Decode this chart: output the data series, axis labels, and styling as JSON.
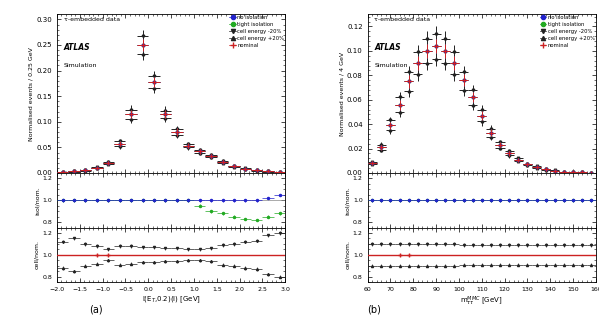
{
  "panel_a": {
    "title": "τ-embedded data",
    "atlas_label": "ATLAS",
    "sim_label": "Simulation",
    "xlabel": "l(E$_{T}$,0.2)(l) [GeV]",
    "ylabel_main": "Normalised events / 0.25 GeV",
    "ylabel_ratio1": "isol/nom.",
    "ylabel_ratio2": "cell/nom.",
    "xlim": [
      -2.0,
      3.0
    ],
    "ylim_main": [
      0.0,
      0.31
    ],
    "ylim_ratio": [
      0.75,
      1.25
    ],
    "yticks_main": [
      0.0,
      0.05,
      0.1,
      0.15,
      0.2,
      0.25,
      0.3
    ],
    "yticks_ratio": [
      0.8,
      1.0,
      1.2
    ],
    "xticks": [
      -2.0,
      -1.5,
      -1.0,
      -0.5,
      0.0,
      0.5,
      1.0,
      1.5,
      2.0,
      2.5,
      3.0
    ],
    "x_bins": [
      -1.875,
      -1.625,
      -1.375,
      -1.125,
      -0.875,
      -0.625,
      -0.375,
      -0.125,
      0.125,
      0.375,
      0.625,
      0.875,
      1.125,
      1.375,
      1.625,
      1.875,
      2.125,
      2.375,
      2.625,
      2.875
    ],
    "nominal": [
      0.002,
      0.003,
      0.005,
      0.01,
      0.02,
      0.057,
      0.115,
      0.25,
      0.178,
      0.115,
      0.08,
      0.053,
      0.042,
      0.033,
      0.022,
      0.013,
      0.008,
      0.005,
      0.003,
      0.002
    ],
    "no_isol": [
      0.002,
      0.003,
      0.005,
      0.01,
      0.02,
      0.057,
      0.115,
      0.25,
      0.178,
      0.115,
      0.08,
      0.053,
      0.042,
      0.033,
      0.022,
      0.013,
      0.008,
      0.005,
      0.003,
      0.002
    ],
    "tight_isol": [
      0.002,
      0.003,
      0.005,
      0.01,
      0.02,
      0.057,
      0.115,
      0.25,
      0.178,
      0.115,
      0.08,
      0.053,
      0.042,
      0.033,
      0.022,
      0.013,
      0.008,
      0.005,
      0.003,
      0.002
    ],
    "cell_minus": [
      0.0024,
      0.0034,
      0.0056,
      0.011,
      0.022,
      0.062,
      0.124,
      0.268,
      0.19,
      0.122,
      0.085,
      0.056,
      0.044,
      0.035,
      0.024,
      0.014,
      0.009,
      0.006,
      0.004,
      0.0025
    ],
    "cell_plus": [
      0.0018,
      0.0026,
      0.0044,
      0.009,
      0.018,
      0.052,
      0.106,
      0.232,
      0.166,
      0.108,
      0.075,
      0.05,
      0.04,
      0.031,
      0.02,
      0.012,
      0.007,
      0.004,
      0.0026,
      0.0015
    ],
    "nominal_err": [
      0.001,
      0.001,
      0.001,
      0.002,
      0.003,
      0.005,
      0.008,
      0.012,
      0.01,
      0.008,
      0.007,
      0.005,
      0.005,
      0.004,
      0.003,
      0.002,
      0.002,
      0.001,
      0.001,
      0.001
    ],
    "no_isol_err": [
      0.001,
      0.001,
      0.001,
      0.002,
      0.003,
      0.005,
      0.008,
      0.012,
      0.01,
      0.008,
      0.007,
      0.005,
      0.005,
      0.004,
      0.003,
      0.002,
      0.002,
      0.001,
      0.001,
      0.001
    ],
    "tight_isol_err": [
      0.001,
      0.001,
      0.001,
      0.002,
      0.003,
      0.005,
      0.008,
      0.012,
      0.01,
      0.008,
      0.007,
      0.005,
      0.005,
      0.004,
      0.003,
      0.002,
      0.002,
      0.001,
      0.001,
      0.001
    ],
    "cell_err": [
      0.001,
      0.001,
      0.001,
      0.002,
      0.003,
      0.005,
      0.008,
      0.012,
      0.01,
      0.008,
      0.007,
      0.005,
      0.005,
      0.004,
      0.003,
      0.002,
      0.002,
      0.001,
      0.001,
      0.001
    ],
    "ratio1_no_isol": [
      1.0,
      1.0,
      1.0,
      1.0,
      1.0,
      1.0,
      1.0,
      1.0,
      1.0,
      1.0,
      1.0,
      1.0,
      1.0,
      1.0,
      1.0,
      1.0,
      1.0,
      1.0,
      1.02,
      1.05
    ],
    "ratio1_tight_isol": [
      1.0,
      1.0,
      1.0,
      1.0,
      1.0,
      1.0,
      1.0,
      1.0,
      1.0,
      1.0,
      1.0,
      1.0,
      0.95,
      0.9,
      0.88,
      0.85,
      0.83,
      0.82,
      0.85,
      0.88
    ],
    "ratio2_minus": [
      1.12,
      1.15,
      1.1,
      1.08,
      1.05,
      1.08,
      1.08,
      1.07,
      1.07,
      1.06,
      1.06,
      1.05,
      1.05,
      1.06,
      1.09,
      1.1,
      1.12,
      1.13,
      1.18,
      1.2
    ],
    "ratio2_plus": [
      0.88,
      0.85,
      0.9,
      0.92,
      0.95,
      0.91,
      0.92,
      0.93,
      0.93,
      0.94,
      0.94,
      0.95,
      0.95,
      0.94,
      0.91,
      0.9,
      0.88,
      0.87,
      0.82,
      0.8
    ],
    "xerr": 0.125
  },
  "panel_b": {
    "title": "τ-embedded data",
    "atlas_label": "ATLAS",
    "sim_label": "Simulation",
    "xlabel": "m$^{MMC}_{\\tau\\tau}$ [GeV]",
    "ylabel_main": "Normalised events / 4 GeV",
    "ylabel_ratio1": "isol/nom.",
    "ylabel_ratio2": "cell/nom.",
    "xlim": [
      60,
      160
    ],
    "ylim_main": [
      0.0,
      0.13
    ],
    "ylim_ratio": [
      0.75,
      1.25
    ],
    "yticks_main": [
      0.0,
      0.02,
      0.04,
      0.06,
      0.08,
      0.1,
      0.12
    ],
    "yticks_ratio": [
      0.8,
      1.0,
      1.2
    ],
    "xticks": [
      60,
      70,
      80,
      90,
      100,
      110,
      120,
      130,
      140,
      150,
      160
    ],
    "x_bins": [
      62,
      66,
      70,
      74,
      78,
      82,
      86,
      90,
      94,
      98,
      102,
      106,
      110,
      114,
      118,
      122,
      126,
      130,
      134,
      138,
      142,
      146,
      150,
      154,
      158
    ],
    "nominal": [
      0.008,
      0.021,
      0.039,
      0.056,
      0.075,
      0.09,
      0.1,
      0.104,
      0.1,
      0.09,
      0.076,
      0.062,
      0.047,
      0.033,
      0.023,
      0.016,
      0.011,
      0.007,
      0.005,
      0.003,
      0.002,
      0.001,
      0.001,
      0.0005,
      0.0003
    ],
    "no_isol": [
      0.008,
      0.021,
      0.039,
      0.056,
      0.075,
      0.09,
      0.1,
      0.104,
      0.1,
      0.09,
      0.076,
      0.062,
      0.047,
      0.033,
      0.023,
      0.016,
      0.011,
      0.007,
      0.005,
      0.003,
      0.002,
      0.001,
      0.001,
      0.0005,
      0.0003
    ],
    "tight_isol": [
      0.008,
      0.021,
      0.039,
      0.056,
      0.075,
      0.09,
      0.1,
      0.104,
      0.1,
      0.09,
      0.076,
      0.062,
      0.047,
      0.033,
      0.023,
      0.016,
      0.011,
      0.007,
      0.005,
      0.003,
      0.002,
      0.001,
      0.001,
      0.0005,
      0.0003
    ],
    "cell_minus": [
      0.0088,
      0.023,
      0.043,
      0.062,
      0.083,
      0.099,
      0.11,
      0.114,
      0.11,
      0.099,
      0.083,
      0.068,
      0.052,
      0.036,
      0.025,
      0.018,
      0.012,
      0.0077,
      0.0055,
      0.0033,
      0.0022,
      0.0011,
      0.0011,
      0.00055,
      0.00033
    ],
    "cell_plus": [
      0.0072,
      0.019,
      0.035,
      0.05,
      0.067,
      0.081,
      0.09,
      0.0936,
      0.09,
      0.081,
      0.068,
      0.0558,
      0.0423,
      0.0297,
      0.0207,
      0.0144,
      0.0099,
      0.0063,
      0.0045,
      0.0027,
      0.0018,
      0.0009,
      0.0009,
      0.00045,
      0.00027
    ],
    "nominal_err": [
      0.001,
      0.002,
      0.003,
      0.004,
      0.005,
      0.006,
      0.006,
      0.006,
      0.006,
      0.006,
      0.005,
      0.004,
      0.004,
      0.003,
      0.002,
      0.002,
      0.001,
      0.001,
      0.001,
      0.001,
      0.0005,
      0.0003,
      0.0003,
      0.0002,
      0.0002
    ],
    "no_isol_err": [
      0.001,
      0.002,
      0.003,
      0.004,
      0.005,
      0.006,
      0.006,
      0.006,
      0.006,
      0.006,
      0.005,
      0.004,
      0.004,
      0.003,
      0.002,
      0.002,
      0.001,
      0.001,
      0.001,
      0.001,
      0.0005,
      0.0003,
      0.0003,
      0.0002,
      0.0002
    ],
    "tight_isol_err": [
      0.001,
      0.002,
      0.003,
      0.004,
      0.005,
      0.006,
      0.006,
      0.006,
      0.006,
      0.006,
      0.005,
      0.004,
      0.004,
      0.003,
      0.002,
      0.002,
      0.001,
      0.001,
      0.001,
      0.001,
      0.0005,
      0.0003,
      0.0003,
      0.0002,
      0.0002
    ],
    "cell_err": [
      0.001,
      0.002,
      0.003,
      0.004,
      0.005,
      0.006,
      0.006,
      0.006,
      0.006,
      0.006,
      0.005,
      0.004,
      0.004,
      0.003,
      0.002,
      0.002,
      0.001,
      0.001,
      0.001,
      0.001,
      0.0005,
      0.0003,
      0.0003,
      0.0002,
      0.0002
    ],
    "ratio1_no_isol": [
      1.0,
      1.0,
      1.0,
      1.0,
      1.0,
      1.0,
      1.0,
      1.0,
      1.0,
      1.0,
      1.0,
      1.0,
      1.0,
      1.0,
      1.0,
      1.0,
      1.0,
      1.0,
      1.0,
      1.0,
      1.0,
      1.0,
      1.0,
      1.0,
      1.0
    ],
    "ratio1_tight_isol": [
      1.0,
      1.0,
      1.0,
      1.0,
      1.0,
      1.0,
      1.0,
      1.0,
      1.0,
      1.0,
      1.0,
      1.0,
      1.0,
      1.0,
      1.0,
      1.0,
      1.0,
      1.0,
      1.0,
      1.0,
      1.0,
      1.0,
      1.0,
      1.0,
      1.0
    ],
    "ratio2_minus": [
      1.1,
      1.1,
      1.1,
      1.1,
      1.1,
      1.1,
      1.1,
      1.1,
      1.1,
      1.1,
      1.09,
      1.09,
      1.09,
      1.09,
      1.09,
      1.09,
      1.09,
      1.09,
      1.09,
      1.09,
      1.09,
      1.09,
      1.09,
      1.09,
      1.09
    ],
    "ratio2_plus": [
      0.9,
      0.9,
      0.9,
      0.9,
      0.9,
      0.9,
      0.9,
      0.9,
      0.9,
      0.9,
      0.91,
      0.91,
      0.91,
      0.91,
      0.91,
      0.91,
      0.91,
      0.91,
      0.91,
      0.91,
      0.91,
      0.91,
      0.91,
      0.91,
      0.91
    ],
    "xerr": 2.0
  },
  "colors": {
    "no_isol": "#2222cc",
    "tight_isol": "#22aa22",
    "cell_minus": "#222222",
    "cell_plus": "#222222",
    "nominal": "#cc2222",
    "ratio_line": "#cc2222",
    "gray_line": "#888888"
  }
}
